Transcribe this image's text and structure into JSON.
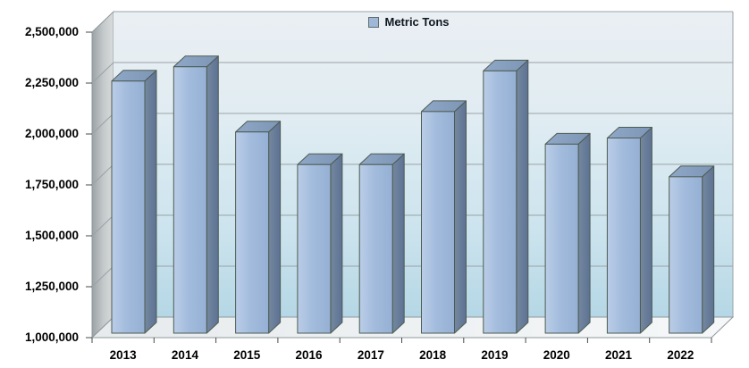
{
  "chart_data": {
    "type": "bar",
    "style": "3d-column",
    "title": "",
    "categories": [
      "2013",
      "2014",
      "2015",
      "2016",
      "2017",
      "2018",
      "2019",
      "2020",
      "2021",
      "2022"
    ],
    "series": [
      {
        "name": "Metric Tons",
        "values": [
          2260000,
          2330000,
          2010000,
          1850000,
          1850000,
          2110000,
          2310000,
          1950000,
          1980000,
          1790000
        ]
      }
    ],
    "xlabel": "",
    "ylabel": "",
    "ylim": [
      1000000,
      2500000
    ],
    "ytick_interval": 250000,
    "ytick_labels": [
      "1,000,000",
      "1,250,000",
      "1,500,000",
      "1,750,000",
      "2,000,000",
      "2,250,000",
      "2,500,000"
    ],
    "grid": true,
    "legend_position": "top-center",
    "colors": {
      "bar_front": "#9fb8da",
      "bar_front_light": "#bacde7",
      "bar_side": "#5d7294",
      "bar_top": "#87a0c0",
      "bar_border": "#4d5c52",
      "plot_bg_top": "#e9eef2",
      "plot_bg_bottom": "#b5d7e5",
      "side_wall": "#b9bec0",
      "floor": "#edf0f1",
      "gridline": "#9aa3a8",
      "legend_marker": "#9fb8d8",
      "label_color": "#000000"
    }
  }
}
